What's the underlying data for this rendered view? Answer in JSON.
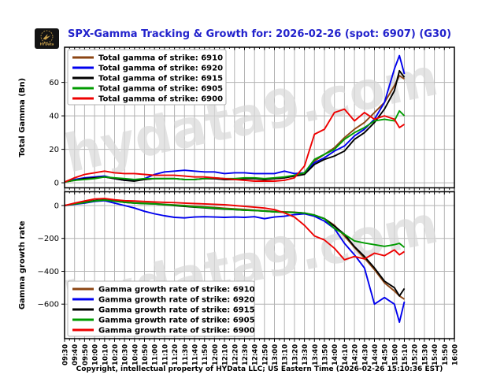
{
  "title": "SPX-Gamma Tracking & Growth for: 2026-02-26 (spot: 6907) (G30)",
  "logo_text": "HYData",
  "watermark": "hydata9.com",
  "footer": "Copyright, intellectual property of HYData LLC; US Eastern Time (2026-02-26 15:10:36 EST)",
  "colors": {
    "title": "#2222cc",
    "grid": "#b3b3b3",
    "frame": "#000000",
    "watermark": "#d9d9d9",
    "logo_bg": "#131313",
    "logo_gold": "#c9a04a"
  },
  "chart_data": [
    {
      "type": "line",
      "title": "",
      "xlabel": "",
      "ylabel": "Total Gamma (Bn)",
      "ylim": [
        -3,
        81
      ],
      "yticks": [
        0,
        20,
        40,
        60
      ],
      "grid": true,
      "legend_position": "upper left",
      "x_minutes": [
        0,
        10,
        20,
        30,
        40,
        50,
        60,
        70,
        80,
        90,
        100,
        110,
        120,
        130,
        140,
        150,
        160,
        170,
        180,
        190,
        200,
        210,
        220,
        230,
        240,
        250,
        260,
        270,
        280,
        290,
        300,
        310,
        320,
        330,
        335,
        340
      ],
      "series": [
        {
          "name": "Total gamma of strike: 6910",
          "strike": "6910",
          "color": "#8b4513",
          "values": [
            0.5,
            1.5,
            2.5,
            3,
            3.5,
            2.5,
            2,
            1.5,
            2,
            2.5,
            2.5,
            2.5,
            2,
            2,
            2.5,
            2.5,
            2,
            2,
            2.5,
            2.5,
            2,
            2.5,
            3,
            4,
            6,
            13,
            17,
            21,
            27,
            32,
            36,
            42,
            48,
            58,
            64,
            62
          ]
        },
        {
          "name": "Total gamma of strike: 6920",
          "strike": "6920",
          "color": "#0000ee",
          "values": [
            0.5,
            2,
            3,
            3.5,
            4,
            2.5,
            1.5,
            1.5,
            2.5,
            5,
            6.5,
            7,
            7.5,
            7,
            6.5,
            6.5,
            5.5,
            6,
            6,
            5.5,
            5.5,
            5.5,
            7,
            5.5,
            6,
            12,
            15,
            19,
            22,
            28,
            32,
            38,
            48,
            68,
            76,
            65
          ]
        },
        {
          "name": "Total gamma of strike: 6915",
          "strike": "6915",
          "color": "#000000",
          "values": [
            0.5,
            1.5,
            2.5,
            3,
            3.5,
            2.5,
            1.5,
            1,
            2,
            2.5,
            2.5,
            2.5,
            2,
            2,
            2.5,
            2.5,
            2,
            2,
            2.5,
            2.5,
            2,
            2.5,
            3,
            4,
            5,
            11,
            14,
            16,
            19,
            26,
            30,
            36,
            44,
            55,
            67,
            63
          ]
        },
        {
          "name": "Total gamma of strike: 6905",
          "strike": "6905",
          "color": "#009b00",
          "values": [
            0.5,
            1.5,
            2,
            2.5,
            3.5,
            3,
            2.5,
            2,
            2.5,
            2.5,
            2.5,
            2.5,
            2,
            2,
            2.5,
            3,
            2.5,
            2.5,
            3,
            3,
            2.5,
            3,
            3.5,
            4.5,
            6,
            14,
            17,
            20,
            26,
            30,
            33,
            37,
            38,
            37,
            43,
            40
          ]
        },
        {
          "name": "Total gamma of strike: 6900",
          "strike": "6900",
          "color": "#ee0000",
          "values": [
            0.5,
            3,
            5,
            6,
            7,
            6,
            5.5,
            5.5,
            5,
            4.5,
            4.5,
            4.5,
            4,
            3.5,
            3.5,
            3,
            2.5,
            2,
            1.5,
            1,
            1,
            1,
            1.5,
            3,
            10,
            29,
            32,
            42,
            44,
            37,
            42,
            38,
            40,
            38,
            33,
            35
          ]
        }
      ]
    },
    {
      "type": "line",
      "title": "",
      "xlabel": "",
      "ylabel": "Gamma growth rate",
      "ylim": [
        -810,
        84
      ],
      "yticks": [
        0,
        -200,
        -400,
        -600
      ],
      "grid": true,
      "legend_position": "lower left",
      "xtick_labels": [
        "09:30",
        "09:40",
        "09:50",
        "10:00",
        "10:10",
        "10:20",
        "10:30",
        "10:40",
        "10:50",
        "11:00",
        "11:10",
        "11:20",
        "11:30",
        "11:40",
        "11:50",
        "12:00",
        "12:10",
        "12:20",
        "12:30",
        "12:40",
        "12:50",
        "13:00",
        "13:10",
        "13:20",
        "13:30",
        "13:40",
        "13:50",
        "14:00",
        "14:10",
        "14:20",
        "14:30",
        "14:40",
        "14:50",
        "15:00",
        "15:10",
        "15:20",
        "15:30",
        "15:40",
        "15:50",
        "16:00"
      ],
      "x_minutes": [
        0,
        10,
        20,
        30,
        40,
        50,
        60,
        70,
        80,
        90,
        100,
        110,
        120,
        130,
        140,
        150,
        160,
        170,
        180,
        190,
        200,
        210,
        220,
        230,
        240,
        250,
        260,
        270,
        280,
        290,
        300,
        310,
        320,
        330,
        335,
        340
      ],
      "series": [
        {
          "name": "Gamma growth rate of strike: 6910",
          "strike": "6910",
          "color": "#8b4513",
          "values": [
            0,
            10,
            20,
            30,
            35,
            28,
            22,
            18,
            15,
            12,
            8,
            4,
            0,
            -4,
            -8,
            -12,
            -16,
            -20,
            -24,
            -28,
            -32,
            -36,
            -38,
            -40,
            -46,
            -60,
            -80,
            -120,
            -185,
            -255,
            -320,
            -390,
            -470,
            -520,
            -550,
            -570
          ]
        },
        {
          "name": "Gamma growth rate of strike: 6920",
          "strike": "6920",
          "color": "#0000ee",
          "values": [
            0,
            8,
            15,
            25,
            30,
            15,
            0,
            -15,
            -35,
            -50,
            -62,
            -72,
            -75,
            -70,
            -68,
            -70,
            -72,
            -70,
            -72,
            -68,
            -80,
            -70,
            -65,
            -55,
            -50,
            -65,
            -95,
            -140,
            -230,
            -300,
            -380,
            -600,
            -560,
            -600,
            -710,
            -585
          ]
        },
        {
          "name": "Gamma growth rate of strike: 6915",
          "strike": "6915",
          "color": "#000000",
          "values": [
            0,
            10,
            20,
            30,
            35,
            28,
            20,
            15,
            12,
            10,
            5,
            0,
            -5,
            -10,
            -14,
            -18,
            -22,
            -25,
            -28,
            -30,
            -34,
            -38,
            -40,
            -42,
            -46,
            -58,
            -80,
            -125,
            -175,
            -250,
            -310,
            -380,
            -460,
            -500,
            -550,
            -505
          ]
        },
        {
          "name": "Gamma growth rate of strike: 6905",
          "strike": "6905",
          "color": "#009b00",
          "values": [
            0,
            10,
            18,
            28,
            33,
            26,
            20,
            15,
            12,
            10,
            6,
            2,
            -2,
            -8,
            -12,
            -15,
            -20,
            -24,
            -28,
            -30,
            -34,
            -38,
            -40,
            -42,
            -46,
            -58,
            -80,
            -140,
            -175,
            -215,
            -228,
            -238,
            -248,
            -238,
            -230,
            -255
          ]
        },
        {
          "name": "Gamma growth rate of strike: 6900",
          "strike": "6900",
          "color": "#ee0000",
          "values": [
            0,
            15,
            28,
            40,
            43,
            35,
            30,
            28,
            25,
            22,
            20,
            18,
            15,
            12,
            10,
            8,
            5,
            0,
            -5,
            -10,
            -15,
            -25,
            -45,
            -70,
            -120,
            -185,
            -210,
            -260,
            -330,
            -310,
            -325,
            -290,
            -305,
            -270,
            -300,
            -280
          ]
        }
      ]
    }
  ]
}
